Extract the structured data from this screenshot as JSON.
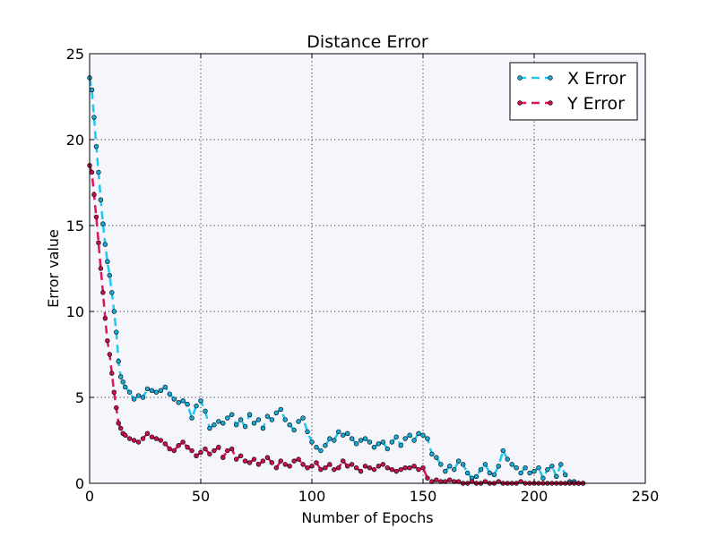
{
  "chart_data": {
    "type": "line",
    "title": "Distance Error",
    "xlabel": "Number of Epochs",
    "ylabel": "Error value",
    "xlim": [
      0,
      250
    ],
    "ylim": [
      0,
      25
    ],
    "xticks": [
      0,
      50,
      100,
      150,
      200,
      250
    ],
    "yticks": [
      0,
      5,
      10,
      15,
      20,
      25
    ],
    "xtick_labels": [
      "0",
      "50",
      "100",
      "150",
      "200",
      "250"
    ],
    "ytick_labels": [
      "0",
      "5",
      "10",
      "15",
      "20",
      "25"
    ],
    "grid": true,
    "legend_position": "top-right",
    "background": "#f4f6fb",
    "series": [
      {
        "name": "X Error",
        "color": "#1ec8f0",
        "marker_color": "#19a9d6",
        "linestyle": "dashed",
        "x": [
          0,
          1,
          2,
          3,
          4,
          5,
          6,
          7,
          8,
          9,
          10,
          11,
          12,
          13,
          14,
          15,
          16,
          18,
          20,
          22,
          24,
          26,
          28,
          30,
          32,
          34,
          36,
          38,
          40,
          42,
          44,
          46,
          48,
          50,
          52,
          54,
          56,
          58,
          60,
          62,
          64,
          66,
          68,
          70,
          72,
          74,
          76,
          78,
          80,
          82,
          84,
          86,
          88,
          90,
          92,
          94,
          96,
          98,
          100,
          102,
          104,
          106,
          108,
          110,
          112,
          114,
          116,
          118,
          120,
          122,
          124,
          126,
          128,
          130,
          132,
          134,
          136,
          138,
          140,
          142,
          144,
          146,
          148,
          150,
          152,
          154,
          156,
          158,
          160,
          162,
          164,
          166,
          168,
          170,
          172,
          174,
          176,
          178,
          180,
          182,
          184,
          186,
          188,
          190,
          192,
          194,
          196,
          198,
          200,
          202,
          204,
          206,
          208,
          210,
          212,
          214,
          216,
          218,
          220,
          222
        ],
        "y": [
          23.6,
          22.9,
          21.3,
          19.6,
          18.1,
          16.5,
          15.1,
          13.9,
          12.9,
          12.1,
          11.1,
          10.0,
          8.8,
          7.1,
          6.2,
          5.9,
          5.6,
          5.3,
          4.9,
          5.1,
          5.0,
          5.5,
          5.4,
          5.3,
          5.4,
          5.6,
          5.2,
          4.9,
          4.7,
          4.8,
          4.6,
          3.8,
          4.5,
          4.8,
          4.2,
          3.2,
          3.4,
          3.6,
          3.5,
          3.8,
          4.0,
          3.4,
          3.7,
          3.3,
          4.0,
          3.5,
          3.7,
          3.2,
          3.9,
          3.7,
          4.1,
          4.3,
          3.7,
          3.4,
          3.1,
          3.6,
          3.8,
          3.0,
          2.4,
          2.1,
          1.9,
          2.2,
          2.6,
          2.5,
          3.0,
          2.8,
          2.9,
          2.6,
          2.3,
          2.5,
          2.6,
          2.4,
          2.1,
          2.3,
          2.4,
          2.0,
          2.4,
          2.7,
          2.2,
          2.6,
          2.8,
          2.5,
          2.9,
          2.8,
          2.6,
          1.7,
          1.5,
          1.1,
          0.7,
          1.0,
          0.8,
          1.3,
          1.1,
          0.6,
          0.3,
          0.4,
          0.8,
          1.1,
          0.6,
          0.5,
          1.0,
          1.9,
          1.4,
          1.1,
          0.9,
          0.6,
          0.9,
          0.6,
          0.7,
          0.9,
          0.3,
          0.8,
          1.0,
          0.4,
          1.1,
          0.5,
          0.1,
          0.1,
          0.0,
          0.0
        ]
      },
      {
        "name": "Y Error",
        "color": "#e0145c",
        "marker_color": "#c8104f",
        "linestyle": "dashed",
        "x": [
          0,
          1,
          2,
          3,
          4,
          5,
          6,
          7,
          8,
          9,
          10,
          11,
          12,
          13,
          14,
          15,
          16,
          18,
          20,
          22,
          24,
          26,
          28,
          30,
          32,
          34,
          36,
          38,
          40,
          42,
          44,
          46,
          48,
          50,
          52,
          54,
          56,
          58,
          60,
          62,
          64,
          66,
          68,
          70,
          72,
          74,
          76,
          78,
          80,
          82,
          84,
          86,
          88,
          90,
          92,
          94,
          96,
          98,
          100,
          102,
          104,
          106,
          108,
          110,
          112,
          114,
          116,
          118,
          120,
          122,
          124,
          126,
          128,
          130,
          132,
          134,
          136,
          138,
          140,
          142,
          144,
          146,
          148,
          150,
          152,
          154,
          156,
          158,
          160,
          162,
          164,
          166,
          168,
          170,
          172,
          174,
          176,
          178,
          180,
          182,
          184,
          186,
          188,
          190,
          192,
          194,
          196,
          198,
          200,
          202,
          204,
          206,
          208,
          210,
          212,
          214,
          216,
          218,
          220,
          222
        ],
        "y": [
          18.5,
          18.1,
          16.8,
          15.5,
          14.0,
          12.5,
          11.1,
          9.6,
          8.3,
          7.5,
          6.4,
          5.3,
          4.4,
          3.5,
          3.2,
          2.9,
          2.8,
          2.6,
          2.5,
          2.4,
          2.6,
          2.9,
          2.7,
          2.6,
          2.5,
          2.3,
          2.0,
          1.9,
          2.2,
          2.4,
          2.1,
          1.9,
          1.6,
          1.8,
          2.0,
          1.7,
          1.9,
          2.1,
          1.5,
          1.9,
          2.0,
          1.4,
          1.6,
          1.3,
          1.2,
          1.4,
          1.1,
          1.3,
          1.5,
          1.2,
          0.9,
          1.3,
          1.1,
          1.0,
          1.3,
          1.4,
          1.1,
          0.9,
          1.0,
          1.2,
          0.8,
          0.9,
          1.1,
          0.8,
          0.9,
          1.3,
          1.0,
          1.1,
          0.9,
          0.7,
          1.0,
          0.9,
          0.8,
          1.0,
          1.1,
          0.9,
          0.8,
          0.7,
          0.8,
          0.9,
          0.9,
          1.0,
          0.8,
          0.9,
          0.3,
          0.1,
          0.2,
          0.1,
          0.1,
          0.2,
          0.1,
          0.1,
          0.0,
          0.0,
          0.1,
          0.0,
          0.0,
          0.1,
          0.0,
          0.0,
          0.1,
          0.0,
          0.0,
          0.0,
          0.0,
          0.1,
          0.0,
          0.0,
          0.0,
          0.0,
          0.0,
          0.0,
          0.0,
          0.0,
          0.0,
          0.0,
          0.0,
          0.0,
          0.0,
          0.0
        ]
      }
    ]
  }
}
